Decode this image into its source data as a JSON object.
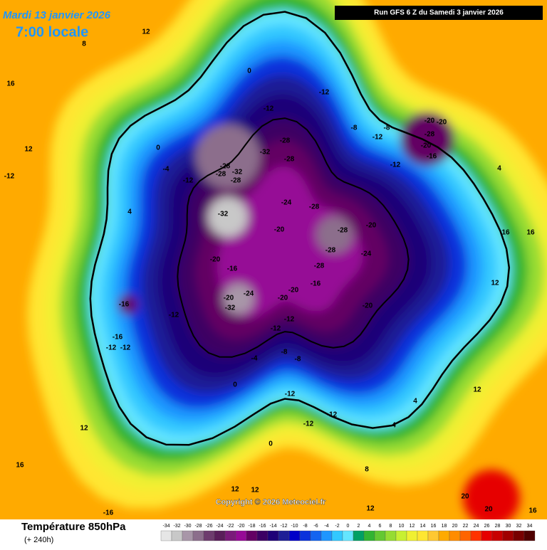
{
  "header": {
    "date": "Mardi 13 janvier 2026",
    "time": "7:00 locale",
    "run": "Run GFS 6 Z du Samedi 3 janvier 2026"
  },
  "copyright": "Copyright © 2026 Meteociel.fr",
  "legend": {
    "title": "Température 850hPa",
    "subtitle": "(+ 240h)",
    "ticks": [
      -34,
      -32,
      -30,
      -28,
      -26,
      -24,
      -22,
      -20,
      -18,
      -16,
      -14,
      -12,
      -10,
      -8,
      -6,
      -4,
      -2,
      0,
      2,
      4,
      6,
      8,
      10,
      12,
      14,
      16,
      18,
      20,
      22,
      24,
      26,
      28,
      30,
      32,
      34
    ],
    "colors": [
      "#e6e6e6",
      "#c8c8c8",
      "#a896a8",
      "#8c6e8c",
      "#6e3c6e",
      "#5a1e5a",
      "#7a1a7a",
      "#960a96",
      "#640064",
      "#3c0064",
      "#1e0078",
      "#1e1e96",
      "#0000c8",
      "#0a32dc",
      "#1464f0",
      "#1e96ff",
      "#32c8ff",
      "#64e6ff",
      "#00a064",
      "#32b432",
      "#64c832",
      "#96dc32",
      "#c8f032",
      "#f0f032",
      "#ffe632",
      "#ffc832",
      "#ffaa00",
      "#ff8c00",
      "#ff6400",
      "#ff3200",
      "#e60000",
      "#c80000",
      "#a00000",
      "#780000",
      "#500000"
    ]
  },
  "labels": [
    "12",
    "8",
    "16",
    "0",
    "-12",
    "-12",
    "-8",
    "-8",
    "-12",
    "-20",
    "-20",
    "-28",
    "-20",
    "-16",
    "-12",
    "-28",
    "-32",
    "-28",
    "-28",
    "-28",
    "-32",
    "-28",
    "-24",
    "-28",
    "-32",
    "-20",
    "-28",
    "-20",
    "-28",
    "-24",
    "-20",
    "-28",
    "-16",
    "-20",
    "-16",
    "-24",
    "-20",
    "-32",
    "-20",
    "-20",
    "-16",
    "-12",
    "-12",
    "-12",
    "-16",
    "-12",
    "-12",
    "-8",
    "-8",
    "-4",
    "0",
    "-12",
    "-12",
    "-12",
    "0",
    "8",
    "4",
    "4",
    "12",
    "16",
    "16",
    "4",
    "12",
    "-12",
    "4",
    "-4",
    "-12",
    "0",
    "12",
    "16",
    "20",
    "20",
    "12",
    "12",
    "-16",
    "12",
    "12",
    "16"
  ]
}
